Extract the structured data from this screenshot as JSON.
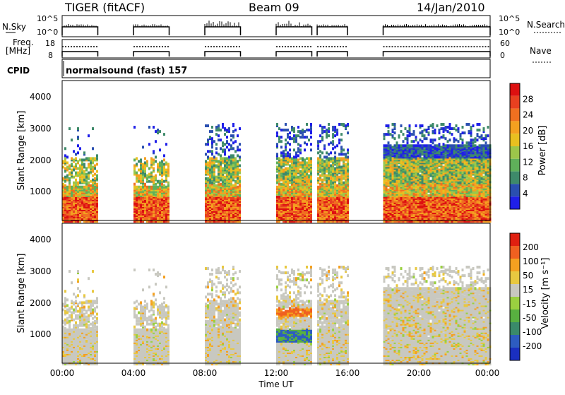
{
  "header": {
    "title": "TIGER (fitACF)",
    "beam": "Beam 09",
    "date": "14/Jan/2010"
  },
  "top_panels": {
    "nsky_label": "N.Sky",
    "nsky_scale_hi": "10^5",
    "nsky_scale_lo": "10^0",
    "nsearch_label": "N.Search",
    "freq_label_1": "Freq.",
    "freq_label_2": "[MHz]",
    "freq_hi": "18",
    "freq_lo": "8",
    "nave_hi": "60",
    "nave_lo": "0",
    "nave_label": "Nave",
    "cpid_label": "CPID",
    "cpid_value": "normalsound (fast) 157"
  },
  "power_panel": {
    "ylabel": "Slant Range [km]",
    "yticks": [
      "4000",
      "3000",
      "2000",
      "1000"
    ],
    "colorbar_label": "Power [dB]",
    "colorbar_ticks": [
      "28",
      "24",
      "20",
      "16",
      "12",
      "8",
      "4"
    ],
    "colors": [
      "#1f1fe8",
      "#2a4fb0",
      "#3e8a6a",
      "#5fb05a",
      "#9cc64a",
      "#e8c020",
      "#f4a020",
      "#f07020",
      "#e84020",
      "#dd1010"
    ]
  },
  "velocity_panel": {
    "ylabel": "Slant Range [km]",
    "yticks": [
      "4000",
      "3000",
      "2000",
      "1000"
    ],
    "colorbar_label": "Velocity [m s⁻¹]",
    "colorbar_ticks": [
      "200",
      "100",
      "50",
      "15",
      "-15",
      "-50",
      "-100",
      "-200"
    ],
    "colors": [
      "#1a2fc0",
      "#2d5cc0",
      "#3a8a6a",
      "#58b040",
      "#9ad040",
      "#c8c8c0",
      "#e8c840",
      "#f4a020",
      "#f06020",
      "#e02010"
    ]
  },
  "xaxis": {
    "label": "Time UT",
    "ticks": [
      "00:00",
      "04:00",
      "08:00",
      "12:00",
      "16:00",
      "20:00",
      "00:00"
    ]
  },
  "chart_data": {
    "type": "heatmap",
    "title": "TIGER (fitACF)",
    "subtitle": "Beam 09",
    "date": "14/Jan/2010",
    "xlabel": "Time UT",
    "ylabel": "Slant Range [km]",
    "x_range_hours": [
      0,
      24
    ],
    "y_range_km": [
      180,
      4600
    ],
    "data_intervals_hours": [
      [
        0.0,
        2.0
      ],
      [
        4.0,
        6.0
      ],
      [
        8.0,
        10.0
      ],
      [
        12.0,
        14.0
      ],
      [
        14.3,
        16.0
      ],
      [
        18.0,
        24.0
      ]
    ],
    "panels": [
      {
        "name": "Power",
        "unit": "dB",
        "color_range": [
          0,
          30
        ],
        "colorbar_ticks": [
          4,
          8,
          12,
          16,
          20,
          24,
          28
        ]
      },
      {
        "name": "Velocity",
        "unit": "m s^-1",
        "color_range": [
          -250,
          250
        ],
        "colorbar_ticks": [
          -200,
          -100,
          -50,
          -15,
          15,
          50,
          100,
          200
        ]
      }
    ],
    "freq_MHz_range": [
      8,
      18
    ],
    "nave_range": [
      0,
      60
    ],
    "cpid": "normalsound (fast) 157"
  }
}
